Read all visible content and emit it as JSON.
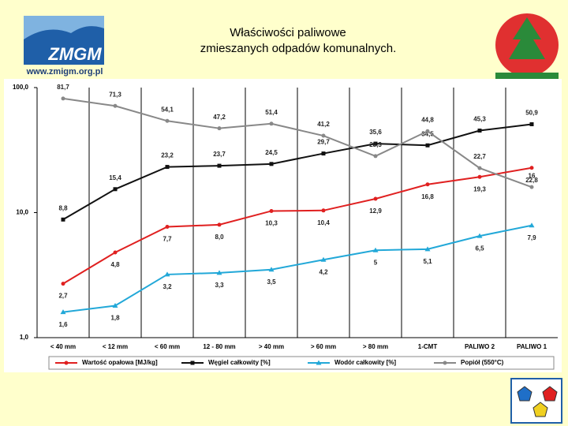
{
  "header": {
    "logo": "ZMGM",
    "url": "www.zmigm.org.pl"
  },
  "chart_data": {
    "type": "line",
    "title": "Właściwości paliwowe",
    "subtitle": "zmieszanych odpadów komunalnych.",
    "categories": [
      "< 40 mm",
      "< 12 mm",
      "< 60 mm",
      "12 - 80 mm",
      "> 40 mm",
      "> 60 mm",
      "> 80 mm",
      "1-CMT",
      "PALIWO 2",
      "PALIWO 1"
    ],
    "log_scale": true,
    "ylim": [
      1,
      100
    ],
    "yticks": [
      {
        "value": 1,
        "label": "1,0"
      },
      {
        "value": 10,
        "label": "10,0"
      },
      {
        "value": 100,
        "label": "100,0"
      }
    ],
    "series": [
      {
        "name": "Wartość opałowa [MJ/kg]",
        "color": "#e02020",
        "marker": "circle",
        "values": [
          2.7,
          4.8,
          7.7,
          8.0,
          10.3,
          10.4,
          12.9,
          16.8,
          19.3,
          22.8
        ],
        "value_labels": [
          "2,7",
          "4,8",
          "7,7",
          "8,0",
          "10,3",
          "10,4",
          "12,9",
          "16,8",
          "19,3",
          "22,8"
        ]
      },
      {
        "name": "Węgiel całkowity [%]",
        "color": "#111111",
        "marker": "square",
        "values": [
          8.8,
          15.4,
          23.2,
          23.7,
          24.5,
          29.7,
          35.6,
          34.5,
          45.3,
          50.9
        ],
        "value_labels": [
          "8,8",
          "15,4",
          "23,2",
          "23,7",
          "24,5",
          "29,7",
          "35,6",
          "34,5",
          "45,3",
          "50,9"
        ]
      },
      {
        "name": "Wodór całkowity [%]",
        "color": "#22a8d8",
        "marker": "triangle",
        "values": [
          1.6,
          1.8,
          3.2,
          3.3,
          3.5,
          4.2,
          5,
          5.1,
          6.5,
          7.9
        ],
        "value_labels": [
          "1,6",
          "1,8",
          "3,2",
          "3,3",
          "3,5",
          "4,2",
          "5",
          "5,1",
          "6,5",
          "7,9"
        ]
      },
      {
        "name": "Popiół (550°C)",
        "color": "#888888",
        "marker": "circle",
        "values": [
          81.7,
          71.3,
          54.1,
          47.2,
          51.4,
          41.2,
          28.3,
          44.8,
          22.7,
          16
        ],
        "value_labels": [
          "81,7",
          "71,3",
          "54,1",
          "47,2",
          "51,4",
          "41,2",
          "28,3",
          "44,8",
          "22,7",
          "16"
        ]
      }
    ]
  }
}
